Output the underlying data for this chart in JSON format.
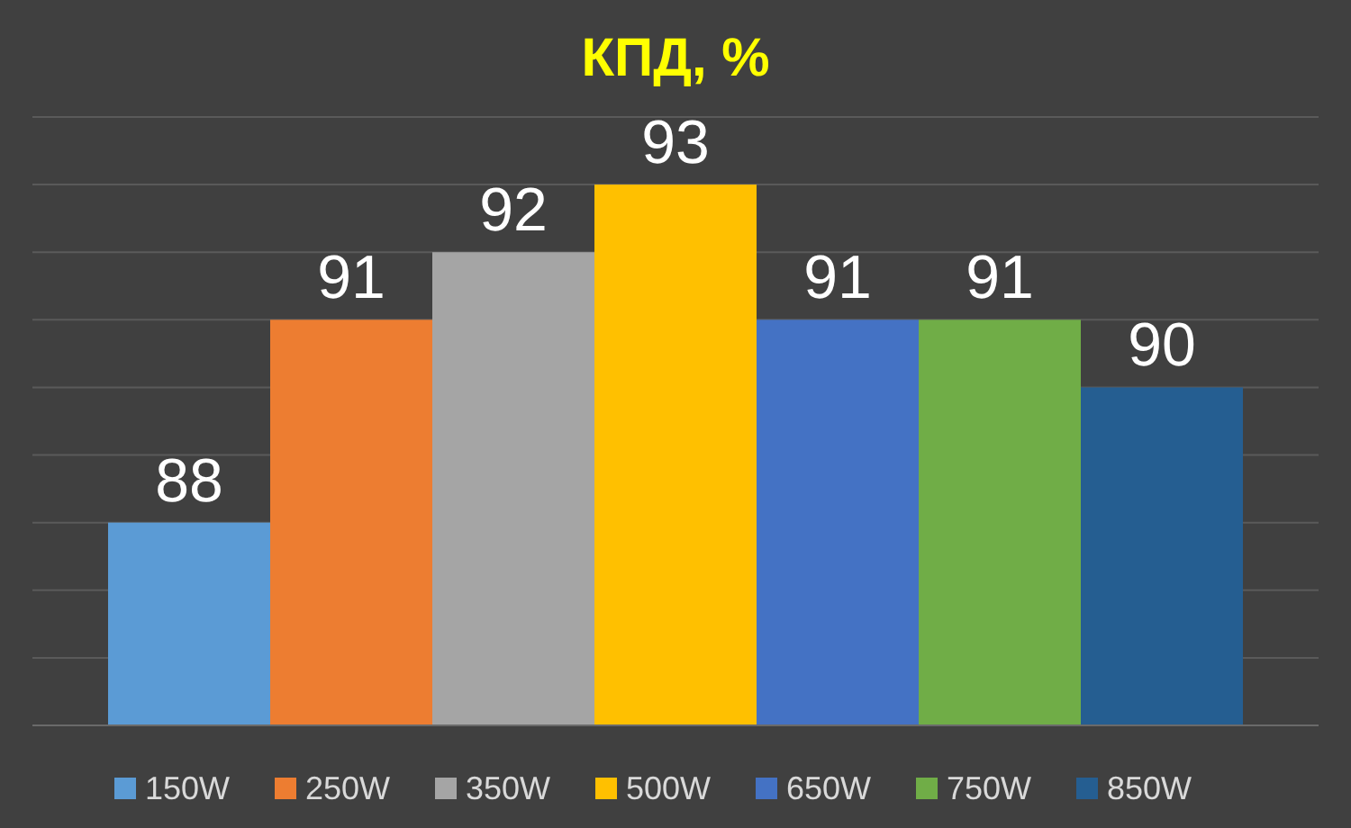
{
  "chart_data": {
    "type": "bar",
    "title": "КПД, %",
    "categories": [
      null
    ],
    "series": [
      {
        "name": "150W",
        "color": "#5b9bd5",
        "values": [
          88
        ]
      },
      {
        "name": "250W",
        "color": "#ed7d31",
        "values": [
          91
        ]
      },
      {
        "name": "350W",
        "color": "#a5a5a5",
        "values": [
          92
        ]
      },
      {
        "name": "500W",
        "color": "#ffc000",
        "values": [
          93
        ]
      },
      {
        "name": "650W",
        "color": "#4472c4",
        "values": [
          91
        ]
      },
      {
        "name": "750W",
        "color": "#70ad47",
        "values": [
          91
        ]
      },
      {
        "name": "850W",
        "color": "#255e91",
        "values": [
          90
        ]
      }
    ],
    "ylim": [
      85,
      94
    ],
    "yticks": [
      {
        "value": 85,
        "label": null
      },
      {
        "value": 86,
        "label": null
      },
      {
        "value": 87,
        "label": null
      },
      {
        "value": 88,
        "label": null
      },
      {
        "value": 89,
        "label": null
      },
      {
        "value": 90,
        "label": null
      },
      {
        "value": 91,
        "label": null
      },
      {
        "value": 92,
        "label": null
      },
      {
        "value": 93,
        "label": null
      },
      {
        "value": 94,
        "label": null
      }
    ],
    "grid": "y",
    "data_labels": true,
    "legend": "bottom"
  }
}
